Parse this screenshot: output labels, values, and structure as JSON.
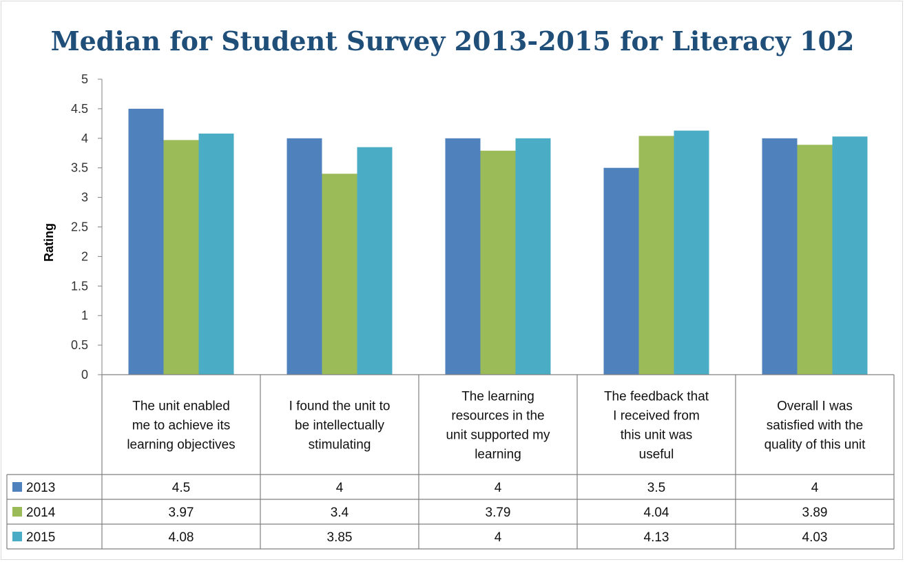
{
  "chart_data": {
    "type": "bar",
    "title": "Median for Student Survey 2013-2015 for Literacy 102",
    "xlabel": "",
    "ylabel": "Rating",
    "ylim": [
      0,
      5
    ],
    "yticks": [
      "0",
      "0.5",
      "1",
      "1.5",
      "2",
      "2.5",
      "3",
      "3.5",
      "4",
      "4.5",
      "5"
    ],
    "grid": false,
    "legend": "data-table",
    "categories": [
      [
        "The unit enabled",
        "me to achieve its",
        "learning objectives"
      ],
      [
        "I found the unit to",
        "be intellectually",
        "stimulating"
      ],
      [
        "The learning",
        "resources in the",
        "unit supported my",
        "learning"
      ],
      [
        "The feedback that",
        "I received from",
        "this unit was",
        "useful"
      ],
      [
        "Overall I was",
        "satisfied with the",
        "quality of this unit"
      ]
    ],
    "series": [
      {
        "name": "2013",
        "color": "#4f81bd",
        "values": [
          4.5,
          4,
          4,
          3.5,
          4
        ],
        "labels": [
          "4.5",
          "4",
          "4",
          "3.5",
          "4"
        ]
      },
      {
        "name": "2014",
        "color": "#9bbb59",
        "values": [
          3.97,
          3.4,
          3.79,
          4.04,
          3.89
        ],
        "labels": [
          "3.97",
          "3.4",
          "3.79",
          "4.04",
          "3.89"
        ]
      },
      {
        "name": "2015",
        "color": "#4bacc6",
        "values": [
          4.08,
          3.85,
          4,
          4.13,
          4.03
        ],
        "labels": [
          "4.08",
          "3.85",
          "4",
          "4.13",
          "4.03"
        ]
      }
    ]
  }
}
